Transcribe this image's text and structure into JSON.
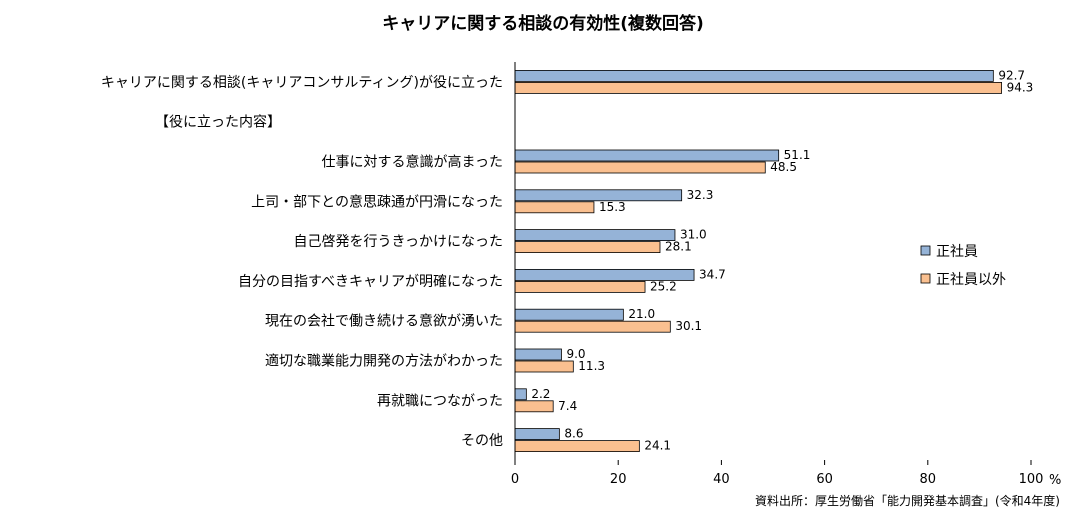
{
  "chart_data": {
    "type": "bar",
    "orientation": "horizontal",
    "title": "キャリアに関する相談の有効性(複数回答)",
    "categories": [
      "キャリアに関する相談(キャリアコンサルティング)が役に立った",
      "【役に立った内容】",
      "仕事に対する意識が高まった",
      "上司・部下との意思疎通が円滑になった",
      "自己啓発を行うきっかけになった",
      "自分の目指すべきキャリアが明確になった",
      "現在の会社で働き続ける意欲が湧いた",
      "適切な職業能力開発の方法がわかった",
      "再就職につながった",
      "その他"
    ],
    "series": [
      {
        "name": "正社員",
        "color": "#95B3D7",
        "values": [
          92.7,
          null,
          51.1,
          32.3,
          31.0,
          34.7,
          21.0,
          9.0,
          2.2,
          8.6
        ],
        "labels": [
          "92.7",
          "",
          "51.1",
          "32.3",
          "31.0",
          "34.7",
          "21.0",
          "9.0",
          "2.2",
          "8.6"
        ]
      },
      {
        "name": "正社員以外",
        "color": "#FAC090",
        "values": [
          94.3,
          null,
          48.5,
          15.3,
          28.1,
          25.2,
          30.1,
          11.3,
          7.4,
          24.1
        ],
        "labels": [
          "94.3",
          "",
          "48.5",
          "15.3",
          "28.1",
          "25.2",
          "30.1",
          "11.3",
          "7.4",
          "24.1"
        ]
      }
    ],
    "xlim": [
      0,
      100
    ],
    "xticks": [
      "0",
      "20",
      "40",
      "60",
      "80",
      "100"
    ],
    "unit": "%",
    "legend_position": "right",
    "grid": false,
    "source": "資料出所：厚生労働省「能力開発基本調査」(令和4年度)"
  }
}
